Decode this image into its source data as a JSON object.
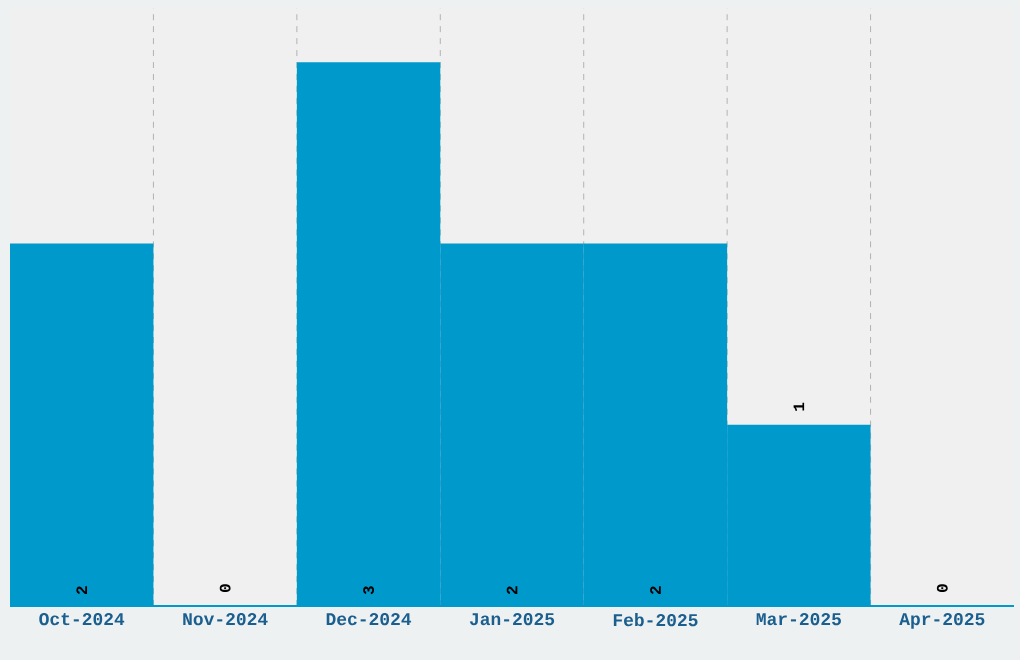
{
  "chart_data": {
    "type": "bar",
    "categories": [
      "Oct-2024",
      "Nov-2024",
      "Dec-2024",
      "Jan-2025",
      "Feb-2025",
      "Mar-2025",
      "Apr-2025"
    ],
    "values": [
      2,
      0,
      3,
      2,
      2,
      1,
      0
    ],
    "color": "#0099cc",
    "data_labels": true,
    "grid": true
  }
}
